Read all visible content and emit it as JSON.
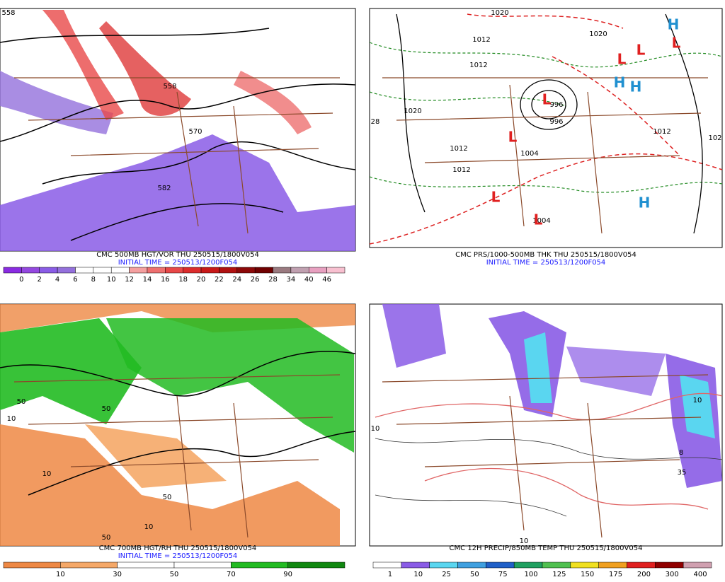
{
  "panels": [
    {
      "caption": "CMC 500MB HGT/VOR THU 250515/1800V054",
      "initial_time": "INITIAL TIME = 250513/1200F054",
      "colorbar": {
        "labels": [
          "0",
          "2",
          "4",
          "6",
          "8",
          "10",
          "12",
          "14",
          "16",
          "18",
          "20",
          "22",
          "24",
          "26",
          "28",
          "34",
          "40",
          "46"
        ],
        "colors": [
          "#8a2be2",
          "#9448e0",
          "#8a5ce6",
          "#9470dc",
          "#ffffff",
          "#ffffff",
          "#ffffff",
          "#f5a0a0",
          "#ee7070",
          "#e84848",
          "#dc2c2c",
          "#c81818",
          "#b01010",
          "#8c0808",
          "#700000",
          "#9a7a80",
          "#c0a0b0",
          "#e8a0c0",
          "#f8c0d0"
        ]
      },
      "labels": [
        "558",
        "558",
        "570",
        "582"
      ],
      "symbols": []
    },
    {
      "caption": "CMC PRS/1000-500MB THK THU 250515/1800V054",
      "initial_time": "INITIAL TIME = 250513/1200F054",
      "colorbar": null,
      "labels": [
        "1020",
        "1012",
        "1012",
        "1020",
        "1020",
        "996",
        "996",
        "1012",
        "1004",
        "1012",
        "1004",
        "1012",
        "102",
        "28"
      ],
      "symbols": [
        {
          "text": "L",
          "color": "#e02020"
        },
        {
          "text": "L",
          "color": "#e02020"
        },
        {
          "text": "L",
          "color": "#e02020"
        },
        {
          "text": "L",
          "color": "#e02020"
        },
        {
          "text": "L",
          "color": "#e02020"
        },
        {
          "text": "L",
          "color": "#e02020"
        },
        {
          "text": "L",
          "color": "#e02020"
        },
        {
          "text": "H",
          "color": "#2090d0"
        },
        {
          "text": "H",
          "color": "#2090d0"
        },
        {
          "text": "H",
          "color": "#2090d0"
        },
        {
          "text": "H",
          "color": "#2090d0"
        }
      ]
    },
    {
      "caption": "CMC 700MB HGT/RH THU 250515/1800V054",
      "initial_time": "INITIAL TIME = 250513/1200F054",
      "colorbar": {
        "labels": [
          "10",
          "30",
          "50",
          "70",
          "90"
        ],
        "colors": [
          "#ee8844",
          "#f5a868",
          "#ffffff",
          "#ffffff",
          "#22bb22",
          "#118811"
        ]
      },
      "labels": [
        "50",
        "10",
        "50",
        "10",
        "50",
        "10",
        "50"
      ],
      "symbols": []
    },
    {
      "caption": "CMC 12H PRECIP/850MB TEMP THU 250515/1800V054",
      "initial_time": null,
      "colorbar": {
        "labels": [
          "1",
          "10",
          "25",
          "50",
          "75",
          "100",
          "125",
          "150",
          "175",
          "200",
          "300",
          "400"
        ],
        "colors": [
          "#ffffff",
          "#8a5ce6",
          "#5ad6f0",
          "#3fa0e0",
          "#2060c8",
          "#20a060",
          "#50c050",
          "#f0e020",
          "#f0a020",
          "#e02020",
          "#900000",
          "#d0a0b0"
        ]
      },
      "labels": [
        "10",
        "35",
        "8",
        "10",
        "10"
      ],
      "symbols": []
    }
  ]
}
